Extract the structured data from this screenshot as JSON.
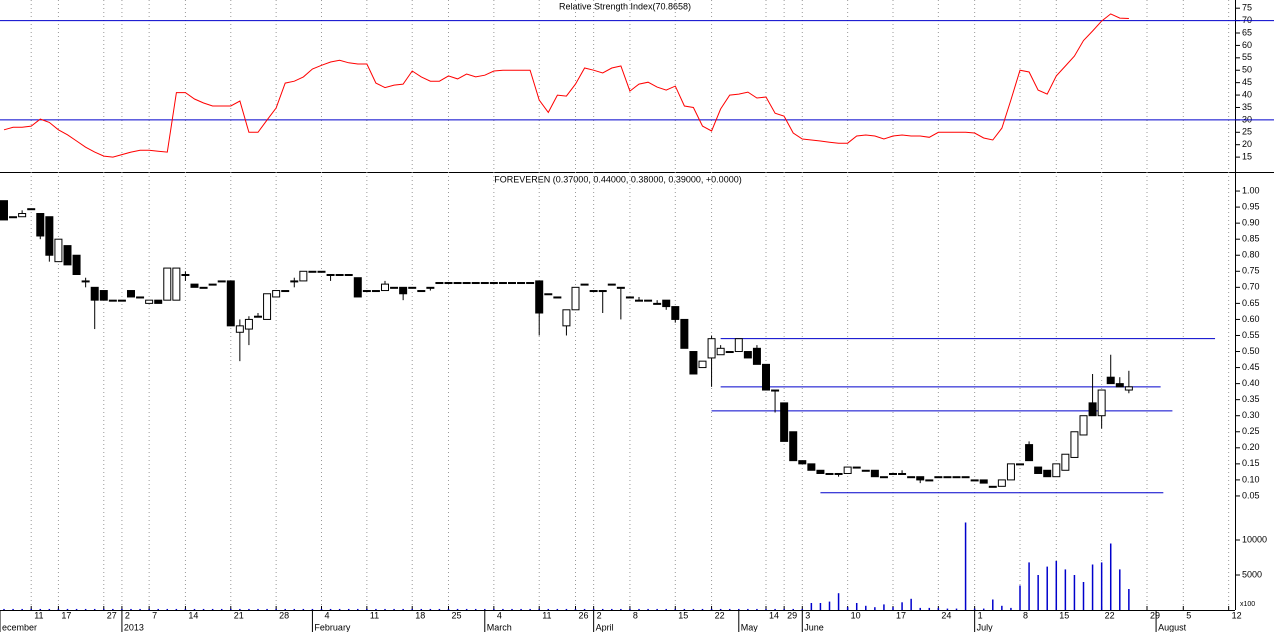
{
  "chart_data": [
    {
      "type": "line",
      "title": "Relative Strength Index(70.8658)",
      "color": "#ff0000",
      "level_color": "#0000cc",
      "levels": [
        30,
        70
      ],
      "ylim": [
        9,
        78.3
      ],
      "yticks": [
        15,
        20,
        25,
        30,
        35,
        40,
        45,
        50,
        55,
        60,
        65,
        70,
        75
      ],
      "values": [
        26,
        27,
        27,
        27.5,
        30.3,
        29,
        26,
        24,
        21.5,
        19,
        17,
        15.4,
        15,
        16,
        17,
        17.8,
        17.8,
        17.4,
        17,
        41,
        41,
        38.4,
        36.8,
        35.6,
        35.6,
        35.6,
        37.6,
        25,
        25,
        30,
        34.8,
        44.8,
        45.6,
        47.3,
        50.5,
        52,
        53.3,
        54,
        53,
        52.5,
        52.5,
        44.8,
        43,
        44,
        44.4,
        49.7,
        47.3,
        45.6,
        45.6,
        47.7,
        46.5,
        48.5,
        47.3,
        48,
        49.7,
        50,
        50,
        50,
        50,
        38,
        33,
        40,
        39.6,
        44.4,
        50.9,
        50,
        48.9,
        50.9,
        51.7,
        41.6,
        44.4,
        45.2,
        43.2,
        42,
        43.6,
        35.6,
        35,
        27.5,
        25.5,
        34.4,
        40,
        40.4,
        41.2,
        38.8,
        39.2,
        32.7,
        31.5,
        24.7,
        22.3,
        21.9,
        21.5,
        21,
        20.6,
        20.6,
        23.5,
        23.9,
        23.5,
        22.3,
        23.5,
        23.9,
        23.5,
        23.5,
        23,
        25,
        25,
        25,
        25,
        24.7,
        22.7,
        21.9,
        26.7,
        38,
        50,
        49.3,
        42,
        40.4,
        47.7,
        51.7,
        55.7,
        62,
        65.8,
        69.8,
        72.7,
        71,
        70.8658
      ]
    },
    {
      "type": "candlestick",
      "title": "FOREVEREN (0.37000, 0.44000, 0.38000, 0.39000, +0.0000)",
      "line_color": "#0000cc",
      "lines": [
        {
          "value": 0.54,
          "from": 79,
          "to": 133.5
        },
        {
          "value": 0.39,
          "from": 79,
          "to": 127.5
        },
        {
          "value": 0.315,
          "from": 78,
          "to": 128.8
        },
        {
          "value": 0.06,
          "from": 90,
          "to": 127.8
        }
      ],
      "ylim": [
        0,
        1.05
      ],
      "yticks": [
        0.05,
        {
          "value": 0.1,
          "label": "0.10"
        },
        0.15,
        {
          "value": 0.2,
          "label": "0.20"
        },
        0.25,
        {
          "value": 0.3,
          "label": "0.30"
        },
        0.35,
        {
          "value": 0.4,
          "label": "0.40"
        },
        0.45,
        {
          "value": 0.5,
          "label": "0.50"
        },
        0.55,
        {
          "value": 0.6,
          "label": "0.60"
        },
        0.65,
        {
          "value": 0.7,
          "label": "0.70"
        },
        0.75,
        {
          "value": 0.8,
          "label": "0.80"
        },
        0.85,
        {
          "value": 0.9,
          "label": "0.90"
        },
        0.95,
        {
          "value": 1,
          "label": "1.00"
        }
      ],
      "xlim": [
        -0.44,
        135.7
      ],
      "xticks": [
        {
          "value": 3,
          "label": "11"
        },
        {
          "value": 6,
          "label": "17"
        },
        {
          "value": 11,
          "label": "27"
        },
        {
          "value": 13,
          "label": "2"
        },
        {
          "value": 16,
          "label": "7"
        },
        {
          "value": 20,
          "label": "14"
        },
        {
          "value": 25,
          "label": "21"
        },
        {
          "value": 30,
          "label": "28"
        },
        {
          "value": 35,
          "label": "4"
        },
        {
          "value": 40,
          "label": "11"
        },
        {
          "value": 45,
          "label": "18"
        },
        {
          "value": 49,
          "label": "25"
        },
        {
          "value": 54,
          "label": "4"
        },
        {
          "value": 59,
          "label": "11"
        },
        {
          "value": 63,
          "label": "26"
        },
        {
          "value": 65,
          "label": "2"
        },
        {
          "value": 69,
          "label": "8"
        },
        {
          "value": 74,
          "label": "15"
        },
        {
          "value": 78,
          "label": "22"
        },
        {
          "value": 84,
          "label": "14"
        },
        {
          "value": 86,
          "label": "29"
        },
        {
          "value": 88,
          "label": "3"
        },
        {
          "value": 93,
          "label": "10"
        },
        {
          "value": 98,
          "label": "17"
        },
        {
          "value": 103,
          "label": "24"
        },
        {
          "value": 107,
          "label": "1"
        },
        {
          "value": 112,
          "label": "8"
        },
        {
          "value": 116,
          "label": "15"
        },
        {
          "value": 121,
          "label": "22"
        },
        {
          "value": 126,
          "label": "29"
        },
        {
          "value": 130,
          "label": "5"
        },
        {
          "value": 135,
          "label": "12"
        }
      ],
      "month_ticks": [
        {
          "value": -0.44,
          "label": "ecember"
        },
        {
          "value": 13,
          "label": "2013"
        },
        {
          "value": 34,
          "label": "February"
        },
        {
          "value": 53,
          "label": "March"
        },
        {
          "value": 65,
          "label": "April"
        },
        {
          "value": 81,
          "label": "May"
        },
        {
          "value": 88,
          "label": "June"
        },
        {
          "value": 107,
          "label": "July"
        },
        {
          "value": 127,
          "label": "August"
        }
      ],
      "open": [
        0.97,
        0.92,
        0.92,
        0.945,
        0.93,
        0.92,
        0.78,
        0.83,
        0.8,
        0.72,
        0.7,
        0.69,
        0.66,
        0.66,
        0.69,
        0.67,
        0.65,
        0.66,
        0.66,
        0.66,
        0.74,
        0.71,
        0.7,
        0.71,
        0.72,
        0.72,
        0.56,
        0.57,
        0.61,
        0.6,
        0.67,
        0.69,
        0.72,
        0.72,
        0.75,
        0.75,
        0.74,
        0.74,
        0.74,
        0.73,
        0.69,
        0.69,
        0.69,
        0.7,
        0.7,
        0.7,
        0.69,
        0.7,
        0.715,
        0.715,
        0.715,
        0.715,
        0.715,
        0.715,
        0.715,
        0.715,
        0.715,
        0.715,
        0.715,
        0.72,
        0.68,
        0.67,
        0.58,
        0.63,
        0.71,
        0.69,
        0.69,
        0.71,
        0.7,
        0.67,
        0.66,
        0.66,
        0.65,
        0.66,
        0.64,
        0.6,
        0.5,
        0.45,
        0.48,
        0.49,
        0.5,
        0.5,
        0.5,
        0.51,
        0.46,
        0.38,
        0.34,
        0.25,
        0.16,
        0.15,
        0.13,
        0.12,
        0.12,
        0.12,
        0.14,
        0.13,
        0.13,
        0.11,
        0.12,
        0.12,
        0.11,
        0.11,
        0.1,
        0.11,
        0.11,
        0.11,
        0.11,
        0.1,
        0.1,
        0.08,
        0.08,
        0.1,
        0.15,
        0.21,
        0.14,
        0.13,
        0.11,
        0.13,
        0.17,
        0.24,
        0.34,
        0.3,
        0.42,
        0.4,
        0.38
      ],
      "high": [
        0.97,
        0.92,
        0.94,
        0.945,
        0.93,
        0.92,
        0.85,
        0.83,
        0.8,
        0.73,
        0.7,
        0.69,
        0.66,
        0.66,
        0.69,
        0.67,
        0.66,
        0.66,
        0.76,
        0.76,
        0.75,
        0.71,
        0.7,
        0.71,
        0.72,
        0.72,
        0.6,
        0.61,
        0.62,
        0.68,
        0.69,
        0.69,
        0.73,
        0.75,
        0.75,
        0.75,
        0.74,
        0.74,
        0.74,
        0.73,
        0.69,
        0.69,
        0.72,
        0.7,
        0.7,
        0.7,
        0.69,
        0.7,
        0.715,
        0.715,
        0.715,
        0.715,
        0.715,
        0.715,
        0.715,
        0.715,
        0.715,
        0.715,
        0.715,
        0.72,
        0.68,
        0.67,
        0.63,
        0.7,
        0.71,
        0.69,
        0.69,
        0.71,
        0.7,
        0.67,
        0.67,
        0.66,
        0.66,
        0.66,
        0.64,
        0.6,
        0.5,
        0.47,
        0.55,
        0.52,
        0.5,
        0.54,
        0.5,
        0.52,
        0.46,
        0.38,
        0.34,
        0.25,
        0.16,
        0.15,
        0.13,
        0.12,
        0.12,
        0.14,
        0.14,
        0.13,
        0.13,
        0.11,
        0.12,
        0.13,
        0.11,
        0.11,
        0.1,
        0.11,
        0.11,
        0.11,
        0.11,
        0.1,
        0.1,
        0.08,
        0.1,
        0.15,
        0.15,
        0.22,
        0.14,
        0.13,
        0.15,
        0.18,
        0.25,
        0.3,
        0.43,
        0.38,
        0.49,
        0.42,
        0.44
      ],
      "low": [
        0.91,
        0.92,
        0.92,
        0.945,
        0.85,
        0.78,
        0.78,
        0.77,
        0.74,
        0.7,
        0.57,
        0.66,
        0.66,
        0.66,
        0.67,
        0.67,
        0.65,
        0.65,
        0.66,
        0.66,
        0.72,
        0.7,
        0.7,
        0.71,
        0.72,
        0.58,
        0.47,
        0.52,
        0.61,
        0.6,
        0.67,
        0.69,
        0.7,
        0.72,
        0.75,
        0.75,
        0.72,
        0.74,
        0.74,
        0.67,
        0.69,
        0.69,
        0.69,
        0.7,
        0.66,
        0.7,
        0.69,
        0.69,
        0.715,
        0.715,
        0.715,
        0.715,
        0.715,
        0.715,
        0.715,
        0.715,
        0.715,
        0.715,
        0.715,
        0.55,
        0.68,
        0.67,
        0.55,
        0.63,
        0.71,
        0.69,
        0.62,
        0.71,
        0.6,
        0.67,
        0.66,
        0.66,
        0.65,
        0.63,
        0.59,
        0.51,
        0.43,
        0.45,
        0.39,
        0.49,
        0.5,
        0.5,
        0.48,
        0.46,
        0.38,
        0.31,
        0.22,
        0.16,
        0.15,
        0.13,
        0.12,
        0.12,
        0.11,
        0.12,
        0.14,
        0.13,
        0.11,
        0.11,
        0.12,
        0.12,
        0.11,
        0.09,
        0.1,
        0.11,
        0.11,
        0.11,
        0.11,
        0.1,
        0.09,
        0.08,
        0.08,
        0.1,
        0.15,
        0.16,
        0.12,
        0.11,
        0.11,
        0.13,
        0.17,
        0.24,
        0.3,
        0.26,
        0.4,
        0.39,
        0.37
      ],
      "close": [
        0.91,
        0.92,
        0.93,
        0.945,
        0.86,
        0.8,
        0.85,
        0.77,
        0.74,
        0.72,
        0.66,
        0.66,
        0.66,
        0.66,
        0.67,
        0.67,
        0.66,
        0.65,
        0.76,
        0.76,
        0.74,
        0.7,
        0.7,
        0.71,
        0.72,
        0.58,
        0.58,
        0.6,
        0.61,
        0.68,
        0.69,
        0.69,
        0.72,
        0.75,
        0.75,
        0.75,
        0.74,
        0.74,
        0.74,
        0.67,
        0.69,
        0.69,
        0.71,
        0.7,
        0.68,
        0.7,
        0.69,
        0.7,
        0.715,
        0.715,
        0.715,
        0.715,
        0.715,
        0.715,
        0.715,
        0.715,
        0.715,
        0.715,
        0.715,
        0.62,
        0.68,
        0.67,
        0.63,
        0.7,
        0.71,
        0.69,
        0.69,
        0.71,
        0.7,
        0.67,
        0.66,
        0.66,
        0.65,
        0.64,
        0.6,
        0.51,
        0.43,
        0.47,
        0.54,
        0.51,
        0.5,
        0.54,
        0.48,
        0.46,
        0.38,
        0.38,
        0.22,
        0.16,
        0.15,
        0.13,
        0.12,
        0.12,
        0.12,
        0.14,
        0.14,
        0.13,
        0.11,
        0.11,
        0.12,
        0.12,
        0.11,
        0.1,
        0.1,
        0.11,
        0.11,
        0.11,
        0.11,
        0.1,
        0.09,
        0.08,
        0.1,
        0.15,
        0.15,
        0.16,
        0.12,
        0.11,
        0.15,
        0.18,
        0.25,
        0.3,
        0.3,
        0.38,
        0.4,
        0.39,
        0.39
      ]
    },
    {
      "type": "bar",
      "color": "#0000cc",
      "y_label": "x100",
      "ylim": [
        0,
        13000
      ],
      "yticks": [
        5000,
        10000
      ],
      "values": [
        150,
        150,
        150,
        150,
        150,
        150,
        150,
        150,
        150,
        150,
        150,
        150,
        150,
        150,
        150,
        150,
        150,
        150,
        150,
        150,
        150,
        150,
        150,
        150,
        150,
        150,
        150,
        150,
        150,
        150,
        150,
        150,
        150,
        150,
        150,
        150,
        150,
        150,
        150,
        150,
        150,
        150,
        150,
        150,
        150,
        150,
        150,
        150,
        150,
        150,
        150,
        150,
        150,
        150,
        150,
        150,
        150,
        150,
        150,
        150,
        150,
        150,
        150,
        150,
        150,
        150,
        150,
        150,
        150,
        150,
        150,
        150,
        150,
        150,
        150,
        150,
        150,
        150,
        150,
        150,
        150,
        150,
        150,
        150,
        150,
        150,
        150,
        150,
        150,
        1000,
        1000,
        1200,
        2400,
        400,
        1000,
        600,
        400,
        800,
        400,
        1100,
        1600,
        300,
        300,
        300,
        200,
        200,
        12500,
        200,
        200,
        1500,
        600,
        300,
        3500,
        6800,
        5000,
        6200,
        7000,
        5800,
        5000,
        4000,
        6500,
        6800,
        9500,
        5800,
        3000
      ]
    }
  ]
}
